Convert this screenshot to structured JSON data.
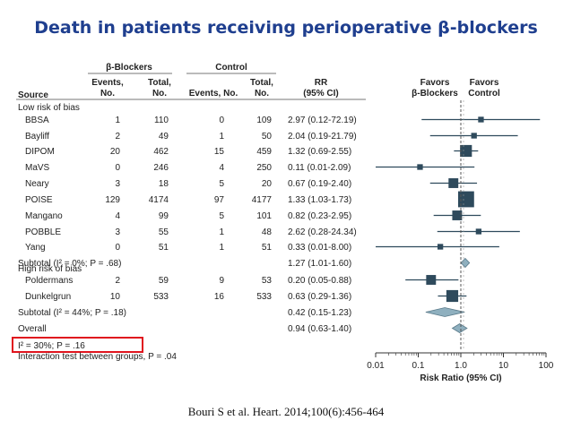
{
  "title": "Death in patients receiving perioperative β-blockers",
  "citation": "Bouri S et al. Heart. 2014;100(6):456-464",
  "header": {
    "group_beta": "β-Blockers",
    "group_control": "Control",
    "source": "Source",
    "events_line1": "Events,",
    "events_line2": "No.",
    "total_line1": "Total,",
    "total_line2": "No.",
    "control_events": "Events, No.",
    "control_total_line1": "Total,",
    "control_total_line2": "No.",
    "rr_line1": "RR",
    "rr_line2": "(95% CI)",
    "favors_beta_line1": "Favors",
    "favors_beta_line2": "β-Blockers",
    "favors_control_line1": "Favors",
    "favors_control_line2": "Control"
  },
  "sections": {
    "low_risk": "Low risk of bias",
    "high_risk": "High risk of bias"
  },
  "footer": {
    "i2_overall": "I² = 30%; P = .16",
    "interaction": "Interaction test between groups, P = .04"
  },
  "colors": {
    "title": "#1f3f8f",
    "marker": "#2e4a5c",
    "diamond": "#8fb0bf",
    "highlight": "#e0141e",
    "header_line": "#777777"
  },
  "chart_data": {
    "type": "forest",
    "x_scale": "log",
    "xlabel": "Risk Ratio (95% CI)",
    "xticks": [
      0.01,
      0.1,
      1.0,
      10,
      100
    ],
    "xtick_labels": [
      "0.01",
      "0.1",
      "1.0",
      "10",
      "100"
    ],
    "reference_line": 1.0,
    "rows": [
      {
        "kind": "study",
        "source": "BBSA",
        "bb_events": "1",
        "bb_total": "110",
        "c_events": "0",
        "c_total": "109",
        "rr_text": "2.97 (0.12-72.19)",
        "rr": 2.97,
        "lo": 0.12,
        "hi": 72.19,
        "weight": 1
      },
      {
        "kind": "study",
        "source": "Bayliff",
        "bb_events": "2",
        "bb_total": "49",
        "c_events": "1",
        "c_total": "50",
        "rr_text": "2.04 (0.19-21.79)",
        "rr": 2.04,
        "lo": 0.19,
        "hi": 21.79,
        "weight": 1
      },
      {
        "kind": "study",
        "source": "DIPOM",
        "bb_events": "20",
        "bb_total": "462",
        "c_events": "15",
        "c_total": "459",
        "rr_text": "1.32 (0.69-2.55)",
        "rr": 1.32,
        "lo": 0.69,
        "hi": 2.55,
        "weight": 4
      },
      {
        "kind": "study",
        "source": "MaVS",
        "bb_events": "0",
        "bb_total": "246",
        "c_events": "4",
        "c_total": "250",
        "rr_text": "0.11 (0.01-2.09)",
        "rr": 0.11,
        "lo": 0.01,
        "hi": 2.09,
        "weight": 1
      },
      {
        "kind": "study",
        "source": "Neary",
        "bb_events": "3",
        "bb_total": "18",
        "c_events": "5",
        "c_total": "20",
        "rr_text": "0.67 (0.19-2.40)",
        "rr": 0.67,
        "lo": 0.19,
        "hi": 2.4,
        "weight": 3
      },
      {
        "kind": "study",
        "source": "POISE",
        "bb_events": "129",
        "bb_total": "4174",
        "c_events": "97",
        "c_total": "4177",
        "rr_text": "1.33 (1.03-1.73)",
        "rr": 1.33,
        "lo": 1.03,
        "hi": 1.73,
        "weight": 6
      },
      {
        "kind": "study",
        "source": "Mangano",
        "bb_events": "4",
        "bb_total": "99",
        "c_events": "5",
        "c_total": "101",
        "rr_text": "0.82 (0.23-2.95)",
        "rr": 0.82,
        "lo": 0.23,
        "hi": 2.95,
        "weight": 3
      },
      {
        "kind": "study",
        "source": "POBBLE",
        "bb_events": "3",
        "bb_total": "55",
        "c_events": "1",
        "c_total": "48",
        "rr_text": "2.62 (0.28-24.34)",
        "rr": 2.62,
        "lo": 0.28,
        "hi": 24.34,
        "weight": 1
      },
      {
        "kind": "study",
        "source": "Yang",
        "bb_events": "0",
        "bb_total": "51",
        "c_events": "1",
        "c_total": "51",
        "rr_text": "0.33 (0.01-8.00)",
        "rr": 0.33,
        "lo": 0.01,
        "hi": 8.0,
        "weight": 1
      },
      {
        "kind": "subtotal",
        "source": "Subtotal (I² = 0%; P = .68)",
        "rr_text": "1.27 (1.01-1.60)",
        "rr": 1.27,
        "lo": 1.01,
        "hi": 1.6
      },
      {
        "kind": "study",
        "source": "Poldermans",
        "bb_events": "2",
        "bb_total": "59",
        "c_events": "9",
        "c_total": "53",
        "rr_text": "0.20 (0.05-0.88)",
        "rr": 0.2,
        "lo": 0.05,
        "hi": 0.88,
        "weight": 3
      },
      {
        "kind": "study",
        "source": "Dunkelgrun",
        "bb_events": "10",
        "bb_total": "533",
        "c_events": "16",
        "c_total": "533",
        "rr_text": "0.63 (0.29-1.36)",
        "rr": 0.63,
        "lo": 0.29,
        "hi": 1.36,
        "weight": 4
      },
      {
        "kind": "subtotal",
        "source": "Subtotal (I² = 44%; P = .18)",
        "rr_text": "0.42 (0.15-1.23)",
        "rr": 0.42,
        "lo": 0.15,
        "hi": 1.23
      },
      {
        "kind": "overall",
        "source": "Overall",
        "rr_text": "0.94 (0.63-1.40)",
        "rr": 0.94,
        "lo": 0.63,
        "hi": 1.4
      }
    ]
  }
}
